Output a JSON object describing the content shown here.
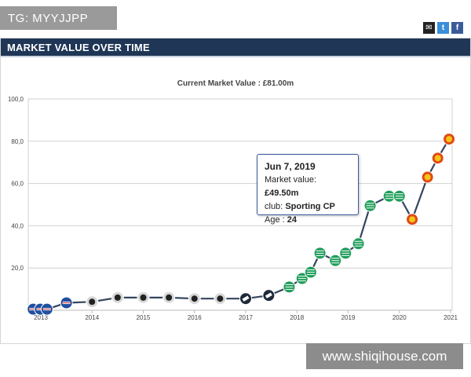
{
  "badge": {
    "text": "TG: MYYJJPP"
  },
  "panel": {
    "title": "MARKET VALUE OVER TIME"
  },
  "share": {
    "mail_icon": "mail-icon",
    "twitter_icon": "twitter-icon",
    "facebook_icon": "facebook-icon",
    "mail": "✉",
    "twitter": "t",
    "facebook": "f"
  },
  "tooltip": {
    "date": "Jun 7, 2019",
    "value_label": "Market value:",
    "value": "£49.50m",
    "club_label": "club:",
    "club": "Sporting CP",
    "age_label": "Age :",
    "age": "24"
  },
  "watermark": {
    "text": "www.shiqihouse.com"
  },
  "colors": {
    "line": "#33455f",
    "grid": "#d0d0d0",
    "sporting": "#1e9e5a",
    "united": "#e04a16",
    "sampdoria": "#1f4fa0",
    "udinese": "#d8d8d8",
    "accent": "#1f3656"
  },
  "chart_data": {
    "type": "line",
    "title": "Current Market Value : £81.00m",
    "xlabel": "",
    "ylabel": "",
    "y_ticks": [
      "100,0",
      "80,0",
      "60,0",
      "40,0",
      "20,0"
    ],
    "x_ticks": [
      "2013",
      "2014",
      "2015",
      "2016",
      "2017",
      "2018",
      "2019",
      "2020",
      "2021"
    ],
    "xlim": [
      2013,
      2021
    ],
    "ylim": [
      0,
      100
    ],
    "grid": true,
    "series": [
      {
        "x": [
          2012.85,
          2012.99,
          2013.12,
          2013.5,
          2014.0,
          2014.5,
          2015.0,
          2015.5,
          2016.0,
          2016.5,
          2017.0,
          2017.45,
          2017.85,
          2018.1,
          2018.27,
          2018.45,
          2018.75,
          2018.95,
          2019.2,
          2019.43,
          2019.8,
          2020.0,
          2020.25,
          2020.55,
          2020.75,
          2020.97
        ],
        "y": [
          0.5,
          0.5,
          0.5,
          3.5,
          4.0,
          6.0,
          6.0,
          6.0,
          5.5,
          5.5,
          5.5,
          7.0,
          11.0,
          15.0,
          18.0,
          27.0,
          23.5,
          27.0,
          31.5,
          49.5,
          54.0,
          54.0,
          43.0,
          63.0,
          72.0,
          81.0
        ],
        "club": [
          "sampdoria",
          "sampdoria",
          "sampdoria",
          "sampdoria",
          "udinese",
          "udinese",
          "udinese",
          "udinese",
          "udinese",
          "udinese",
          "dark",
          "dark",
          "sporting",
          "sporting",
          "sporting",
          "sporting",
          "sporting",
          "sporting",
          "sporting",
          "sporting",
          "sporting",
          "sporting",
          "united",
          "united",
          "united",
          "united"
        ]
      }
    ]
  }
}
